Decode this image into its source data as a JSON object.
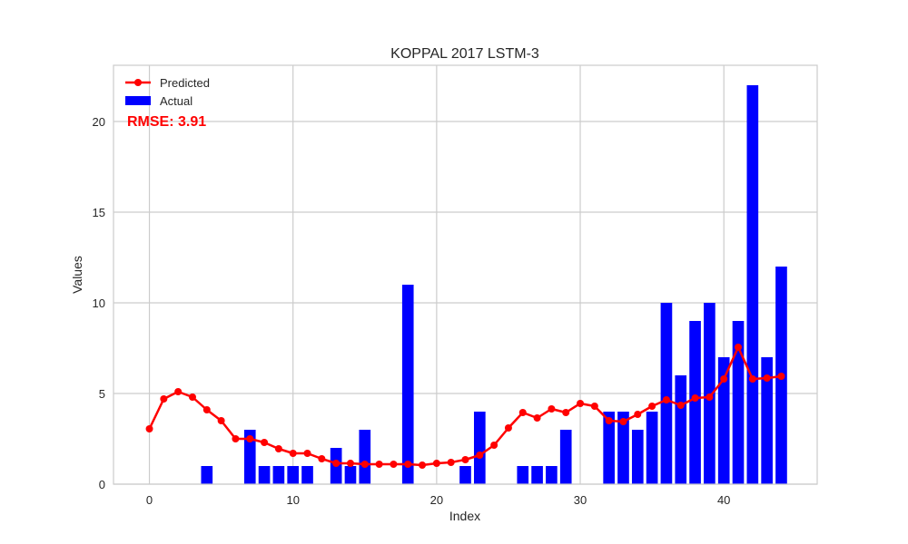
{
  "chart_data": {
    "type": "bar",
    "title": "KOPPAL 2017 LSTM-3",
    "xlabel": "Index",
    "ylabel": "Values",
    "xlim": [
      -2.5,
      46.5
    ],
    "ylim": [
      0,
      23.1
    ],
    "xticks": [
      0,
      10,
      20,
      30,
      40
    ],
    "yticks": [
      0,
      5,
      10,
      15,
      20
    ],
    "grid": true,
    "legend": {
      "placement": "top-left",
      "entries": [
        "Predicted",
        "Actual"
      ]
    },
    "annotation": "RMSE: 3.91",
    "x": [
      0,
      1,
      2,
      3,
      4,
      5,
      6,
      7,
      8,
      9,
      10,
      11,
      12,
      13,
      14,
      15,
      16,
      17,
      18,
      19,
      20,
      21,
      22,
      23,
      24,
      25,
      26,
      27,
      28,
      29,
      30,
      31,
      32,
      33,
      34,
      35,
      36,
      37,
      38,
      39,
      40,
      41,
      42,
      43,
      44
    ],
    "series": [
      {
        "name": "Actual",
        "kind": "bar",
        "color": "#0000ff",
        "values": [
          0,
          0,
          0,
          0,
          1,
          0,
          0,
          3,
          1,
          1,
          1,
          1,
          0,
          2,
          1,
          3,
          0,
          0,
          11,
          0,
          0,
          0,
          1,
          4,
          0,
          0,
          1,
          1,
          1,
          3,
          0,
          0,
          4,
          4,
          3,
          4,
          10,
          6,
          9,
          10,
          7,
          9,
          22,
          7,
          12
        ]
      },
      {
        "name": "Predicted",
        "kind": "line",
        "color": "#ff0000",
        "values": [
          3.05,
          4.7,
          5.1,
          4.8,
          4.1,
          3.5,
          2.5,
          2.5,
          2.3,
          1.95,
          1.7,
          1.7,
          1.4,
          1.15,
          1.15,
          1.1,
          1.1,
          1.1,
          1.1,
          1.05,
          1.15,
          1.2,
          1.35,
          1.6,
          2.15,
          3.1,
          3.95,
          3.65,
          4.15,
          3.95,
          4.45,
          4.3,
          3.5,
          3.45,
          3.85,
          4.3,
          4.65,
          4.35,
          4.75,
          4.8,
          5.8,
          7.55,
          5.8,
          5.85,
          5.95
        ]
      }
    ]
  }
}
